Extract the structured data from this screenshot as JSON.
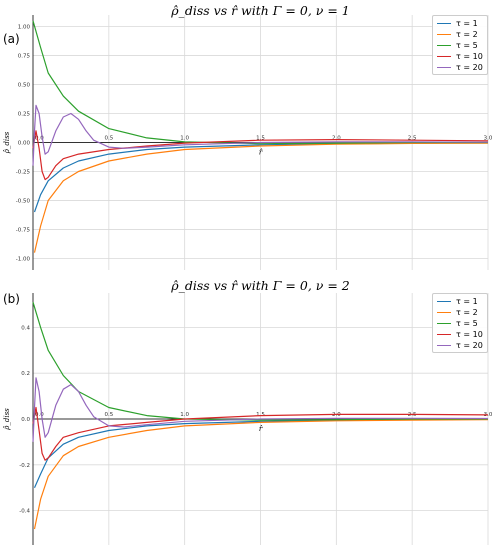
{
  "panels": [
    {
      "label": "(a)",
      "title": "ρ̂_diss  vs  r̂  with  Γ = 0, ν = 1"
    },
    {
      "label": "(b)",
      "title": "ρ̂_diss  vs  r̂  with  Γ = 0, ν = 2"
    }
  ],
  "legend": [
    {
      "name": "τ = 1",
      "color": "#1f77b4"
    },
    {
      "name": "τ = 2",
      "color": "#ff7f0e"
    },
    {
      "name": "τ = 5",
      "color": "#2ca02c"
    },
    {
      "name": "τ = 10",
      "color": "#d62728"
    },
    {
      "name": "τ = 20",
      "color": "#9467bd"
    }
  ],
  "chart_data": [
    {
      "type": "line",
      "title": "ρ̂_diss  vs  r̂  with  Γ = 0, ν = 1",
      "xlabel": "r̂",
      "ylabel": "ρ̂_diss",
      "xlim": [
        0.0,
        3.0
      ],
      "ylim": [
        -1.1,
        1.1
      ],
      "xticks": [
        "0.0",
        "0.5",
        "1.0",
        "1.5",
        "2.0",
        "2.5",
        "3.0"
      ],
      "yticks": [
        "-1.00",
        "-0.75",
        "-0.50",
        "-0.25",
        "0.00",
        "0.25",
        "0.50",
        "0.75",
        "1.00"
      ],
      "grid": true,
      "legend_position": "top-right",
      "series": [
        {
          "name": "τ = 1",
          "color": "#1f77b4",
          "x": [
            0.01,
            0.05,
            0.1,
            0.2,
            0.3,
            0.5,
            0.75,
            1.0,
            1.5,
            2.0,
            2.5,
            3.0
          ],
          "y": [
            -0.6,
            -0.45,
            -0.33,
            -0.22,
            -0.16,
            -0.1,
            -0.06,
            -0.04,
            -0.02,
            -0.01,
            -0.005,
            0.0
          ]
        },
        {
          "name": "τ = 2",
          "color": "#ff7f0e",
          "x": [
            0.01,
            0.05,
            0.1,
            0.2,
            0.3,
            0.5,
            0.75,
            1.0,
            1.5,
            2.0,
            2.5,
            3.0
          ],
          "y": [
            -0.95,
            -0.72,
            -0.5,
            -0.33,
            -0.25,
            -0.16,
            -0.1,
            -0.06,
            -0.03,
            -0.015,
            -0.008,
            -0.005
          ]
        },
        {
          "name": "τ = 5",
          "color": "#2ca02c",
          "x": [
            0.0,
            0.05,
            0.1,
            0.2,
            0.3,
            0.5,
            0.75,
            1.0,
            1.5,
            2.0,
            2.5,
            3.0
          ],
          "y": [
            1.05,
            0.82,
            0.6,
            0.4,
            0.27,
            0.12,
            0.04,
            0.005,
            -0.01,
            -0.005,
            0.0,
            0.0
          ]
        },
        {
          "name": "τ = 10",
          "color": "#d62728",
          "x": [
            0.0,
            0.02,
            0.04,
            0.06,
            0.08,
            0.1,
            0.15,
            0.2,
            0.3,
            0.5,
            0.75,
            1.0,
            1.5,
            2.0,
            2.5,
            3.0
          ],
          "y": [
            -0.05,
            0.1,
            -0.05,
            -0.25,
            -0.32,
            -0.3,
            -0.2,
            -0.14,
            -0.1,
            -0.06,
            -0.03,
            -0.005,
            0.02,
            0.025,
            0.02,
            0.015
          ]
        },
        {
          "name": "τ = 20",
          "color": "#9467bd",
          "x": [
            0.0,
            0.01,
            0.02,
            0.04,
            0.06,
            0.08,
            0.1,
            0.15,
            0.2,
            0.25,
            0.3,
            0.35,
            0.4,
            0.5,
            0.6,
            0.75,
            1.0,
            1.5,
            2.0,
            2.5,
            3.0
          ],
          "y": [
            -0.2,
            0.1,
            0.32,
            0.25,
            0.05,
            -0.1,
            -0.08,
            0.1,
            0.22,
            0.25,
            0.2,
            0.1,
            0.02,
            -0.04,
            -0.05,
            -0.04,
            -0.02,
            0.0,
            0.005,
            0.005,
            0.003
          ]
        }
      ]
    },
    {
      "type": "line",
      "title": "ρ̂_diss  vs  r̂  with  Γ = 0, ν = 2",
      "xlabel": "r̂",
      "ylabel": "ρ̂_diss",
      "xlim": [
        0.0,
        3.0
      ],
      "ylim": [
        -0.55,
        0.55
      ],
      "xticks": [
        "0.0",
        "0.5",
        "1.0",
        "1.5",
        "2.0",
        "2.5",
        "3.0"
      ],
      "yticks": [
        "-0.4",
        "-0.2",
        "0.0",
        "0.2",
        "0.4"
      ],
      "grid": true,
      "legend_position": "top-right",
      "series": [
        {
          "name": "τ = 1",
          "color": "#1f77b4",
          "x": [
            0.01,
            0.05,
            0.1,
            0.2,
            0.3,
            0.5,
            0.75,
            1.0,
            1.5,
            2.0,
            2.5,
            3.0
          ],
          "y": [
            -0.3,
            -0.24,
            -0.17,
            -0.11,
            -0.08,
            -0.05,
            -0.03,
            -0.02,
            -0.01,
            -0.005,
            -0.003,
            0.0
          ]
        },
        {
          "name": "τ = 2",
          "color": "#ff7f0e",
          "x": [
            0.01,
            0.05,
            0.1,
            0.2,
            0.3,
            0.5,
            0.75,
            1.0,
            1.5,
            2.0,
            2.5,
            3.0
          ],
          "y": [
            -0.48,
            -0.35,
            -0.25,
            -0.16,
            -0.12,
            -0.08,
            -0.05,
            -0.03,
            -0.015,
            -0.008,
            -0.005,
            -0.003
          ]
        },
        {
          "name": "τ = 5",
          "color": "#2ca02c",
          "x": [
            0.0,
            0.05,
            0.1,
            0.2,
            0.3,
            0.5,
            0.75,
            1.0,
            1.5,
            2.0,
            2.5,
            3.0
          ],
          "y": [
            0.51,
            0.4,
            0.3,
            0.19,
            0.12,
            0.05,
            0.015,
            0.0,
            -0.005,
            -0.003,
            0.0,
            0.0
          ]
        },
        {
          "name": "τ = 10",
          "color": "#d62728",
          "x": [
            0.0,
            0.02,
            0.04,
            0.06,
            0.08,
            0.1,
            0.15,
            0.2,
            0.3,
            0.5,
            0.75,
            1.0,
            1.5,
            2.0,
            2.5,
            3.0
          ],
          "y": [
            -0.02,
            0.05,
            -0.05,
            -0.15,
            -0.18,
            -0.17,
            -0.12,
            -0.08,
            -0.06,
            -0.03,
            -0.015,
            0.0,
            0.015,
            0.02,
            0.02,
            0.018
          ]
        },
        {
          "name": "τ = 20",
          "color": "#9467bd",
          "x": [
            0.0,
            0.01,
            0.02,
            0.04,
            0.06,
            0.08,
            0.1,
            0.15,
            0.2,
            0.25,
            0.3,
            0.35,
            0.4,
            0.5,
            0.6,
            0.75,
            1.0,
            1.5,
            2.0,
            2.5,
            3.0
          ],
          "y": [
            -0.1,
            0.05,
            0.18,
            0.12,
            0.0,
            -0.08,
            -0.06,
            0.06,
            0.13,
            0.15,
            0.12,
            0.06,
            0.01,
            -0.03,
            -0.035,
            -0.025,
            -0.01,
            0.0,
            0.003,
            0.003,
            0.002
          ]
        }
      ]
    }
  ]
}
